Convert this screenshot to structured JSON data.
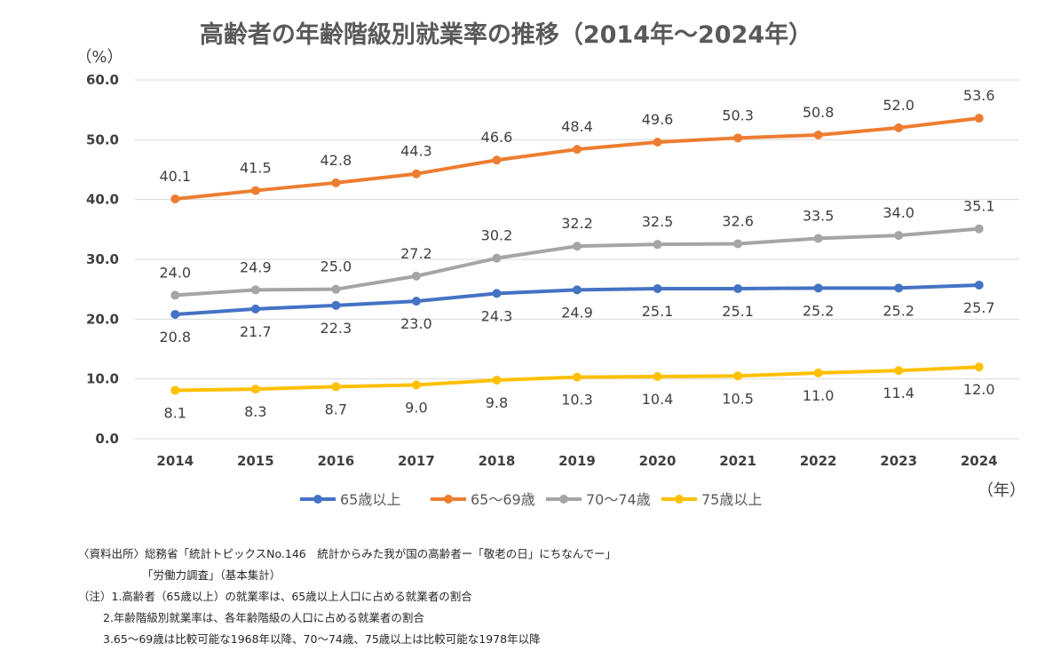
{
  "chart_data": {
    "type": "line",
    "title": "高齢者の年齢階級別就業率の推移（2014年～2024年）",
    "y_unit_label": "（%）",
    "x_unit_label": "（年）",
    "ylim": [
      0,
      60
    ],
    "yticks": [
      "0.0",
      "10.0",
      "20.0",
      "30.0",
      "40.0",
      "50.0",
      "60.0"
    ],
    "grid": true,
    "legend_position": "bottom",
    "categories": [
      "2014",
      "2015",
      "2016",
      "2017",
      "2018",
      "2019",
      "2020",
      "2021",
      "2022",
      "2023",
      "2024"
    ],
    "series": [
      {
        "name": "65歳以上",
        "color": "#4472c4",
        "label_position": "below",
        "values": [
          20.8,
          21.7,
          22.3,
          23.0,
          24.3,
          24.9,
          25.1,
          25.1,
          25.2,
          25.2,
          25.7
        ],
        "labels": [
          "20.8",
          "21.7",
          "22.3",
          "23.0",
          "24.3",
          "24.9",
          "25.1",
          "25.1",
          "25.2",
          "25.2",
          "25.7"
        ]
      },
      {
        "name": "65～69歳",
        "color": "#ed7d31",
        "label_position": "above",
        "values": [
          40.1,
          41.5,
          42.8,
          44.3,
          46.6,
          48.4,
          49.6,
          50.3,
          50.8,
          52.0,
          53.6
        ],
        "labels": [
          "40.1",
          "41.5",
          "42.8",
          "44.3",
          "46.6",
          "48.4",
          "49.6",
          "50.3",
          "50.8",
          "52.0",
          "53.6"
        ]
      },
      {
        "name": "70～74歳",
        "color": "#a5a5a5",
        "label_position": "above",
        "values": [
          24.0,
          24.9,
          25.0,
          27.2,
          30.2,
          32.2,
          32.5,
          32.6,
          33.5,
          34.0,
          35.1
        ],
        "labels": [
          "24.0",
          "24.9",
          "25.0",
          "27.2",
          "30.2",
          "32.2",
          "32.5",
          "32.6",
          "33.5",
          "34.0",
          "35.1"
        ]
      },
      {
        "name": "75歳以上",
        "color": "#ffc000",
        "label_position": "below",
        "values": [
          8.1,
          8.3,
          8.7,
          9.0,
          9.8,
          10.3,
          10.4,
          10.5,
          11.0,
          11.4,
          12.0
        ],
        "labels": [
          "8.1",
          "8.3",
          "8.7",
          "9.0",
          "9.8",
          "10.3",
          "10.4",
          "10.5",
          "11.0",
          "11.4",
          "12.0"
        ]
      }
    ]
  },
  "notes": {
    "source_line1": "〈資料出所〉総務省「統計トピックスNo.146　統計からみた我が国の高齢者ー「敬老の日」にちなんでー」",
    "source_line2": "「労働力調査」（基本集計）",
    "note1": "（注）1.高齢者（65歳以上）の就業率は、65歳以上人口に占める就業者の割合",
    "note2": "2.年齢階級別就業率は、各年齢階級の人口に占める就業者の割合",
    "note3": "3.65～69歳は比較可能な1968年以降、70～74歳、75歳以上は比較可能な1978年以降"
  }
}
